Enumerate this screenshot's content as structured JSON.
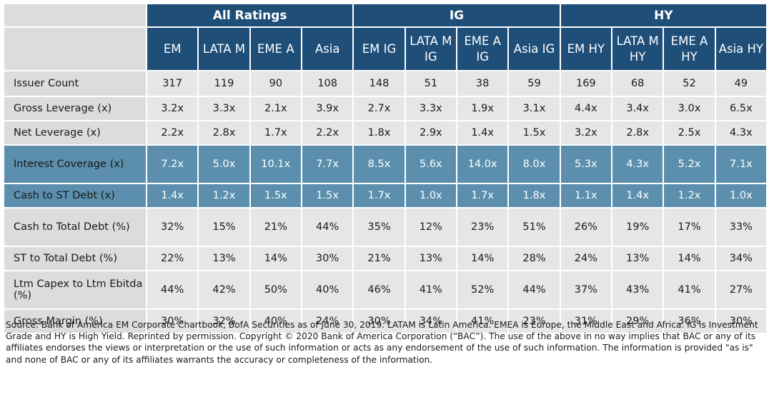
{
  "groups": [
    "All Ratings",
    "IG",
    "HY"
  ],
  "columns": [
    "EM",
    "LATA M",
    "EME A",
    "Asia",
    "EM IG",
    "LATA M IG",
    "EME A IG",
    "Asia IG",
    "EM HY",
    "LATA M HY",
    "EME A HY",
    "Asia HY"
  ],
  "rows": [
    {
      "label": "Issuer Count",
      "values": [
        "317",
        "119",
        "90",
        "108",
        "148",
        "51",
        "38",
        "59",
        "169",
        "68",
        "52",
        "49"
      ]
    },
    {
      "label": "Gross Leverage (x)",
      "values": [
        "3.2x",
        "3.3x",
        "2.1x",
        "3.9x",
        "2.7x",
        "3.3x",
        "1.9x",
        "3.1x",
        "4.4x",
        "3.4x",
        "3.0x",
        "6.5x"
      ]
    },
    {
      "label": "Net Leverage (x)",
      "values": [
        "2.2x",
        "2.8x",
        "1.7x",
        "2.2x",
        "1.8x",
        "2.9x",
        "1.4x",
        "1.5x",
        "3.2x",
        "2.8x",
        "2.5x",
        "4.3x"
      ]
    },
    {
      "label": "Interest Coverage (x)",
      "values": [
        "7.2x",
        "5.0x",
        "10.1x",
        "7.7x",
        "8.5x",
        "5.6x",
        "14.0x",
        "8.0x",
        "5.3x",
        "4.3x",
        "5.2x",
        "7.1x"
      ]
    },
    {
      "label": "Cash to ST Debt (x)",
      "values": [
        "1.4x",
        "1.2x",
        "1.5x",
        "1.5x",
        "1.7x",
        "1.0x",
        "1.7x",
        "1.8x",
        "1.1x",
        "1.4x",
        "1.2x",
        "1.0x"
      ]
    },
    {
      "label": "Cash to Total Debt (%)",
      "values": [
        "32%",
        "15%",
        "21%",
        "44%",
        "35%",
        "12%",
        "23%",
        "51%",
        "26%",
        "19%",
        "17%",
        "33%"
      ]
    },
    {
      "label": "ST to Total Debt (%)",
      "values": [
        "22%",
        "13%",
        "14%",
        "30%",
        "21%",
        "13%",
        "14%",
        "28%",
        "24%",
        "13%",
        "14%",
        "34%"
      ]
    },
    {
      "label": "Ltm Capex to Ltm Ebitda (%)",
      "values": [
        "44%",
        "42%",
        "50%",
        "40%",
        "46%",
        "41%",
        "52%",
        "44%",
        "37%",
        "43%",
        "41%",
        "27%"
      ]
    },
    {
      "label": "Gross Margin (%)",
      "values": [
        "30%",
        "32%",
        "40%",
        "24%",
        "30%",
        "34%",
        "41%",
        "23%",
        "31%",
        "29%",
        "36%",
        "30%"
      ]
    }
  ],
  "source": "Source: Bank of America EM Corporate Chartbook, BofA Securities as of June 30, 2019. LATAM is Latin America. EMEA is Europe, the Middle East and Africa.  IG is Investment Grade and HY is High Yield. Reprinted by permission. Copyright © 2020 Bank of America Corporation (“BAC”). The use of the above in no way implies that BAC or any of its affiliates endorses the views or interpretation or the use of such information or acts as any endorsement of the use of such information. The information is provided \"as is\" and none of BAC or any of its affiliates warrants the accuracy or completeness of the information."
}
